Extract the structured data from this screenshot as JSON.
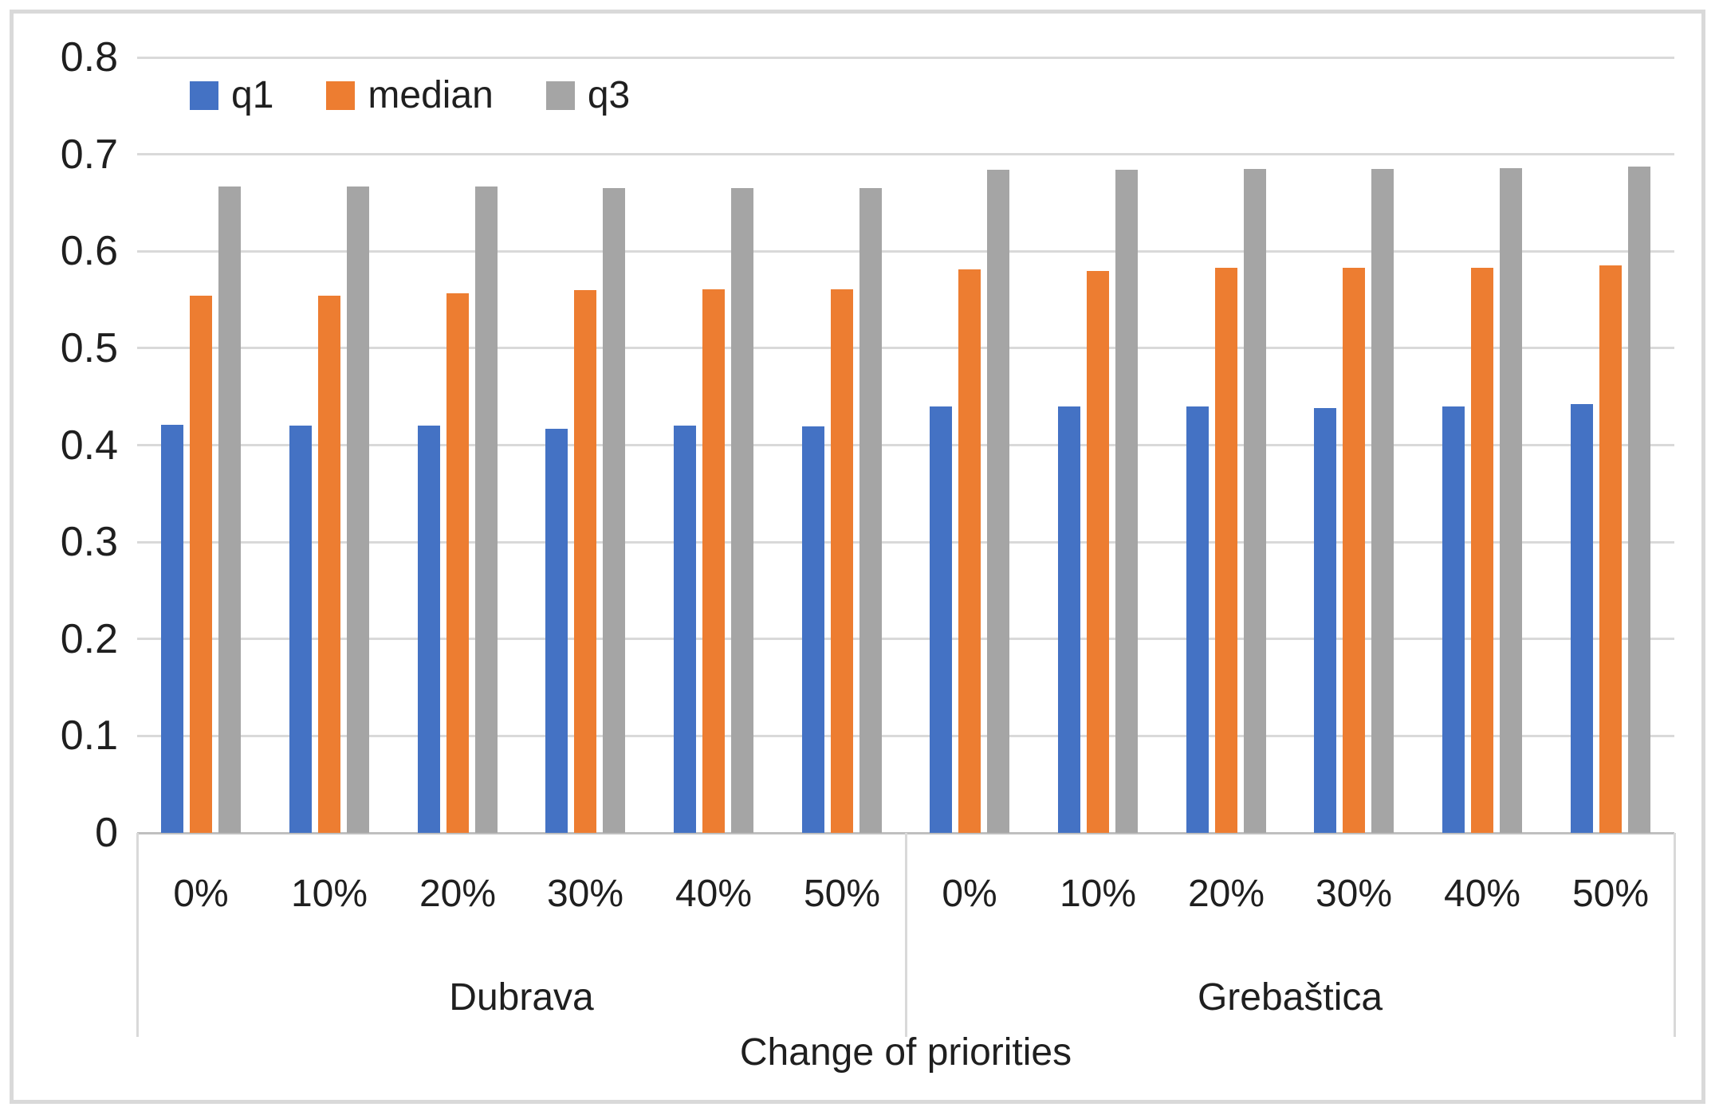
{
  "chart_data": {
    "type": "bar",
    "title": "",
    "xlabel": "Change of priorities",
    "ylabel": "",
    "ylim": [
      0,
      0.8
    ],
    "ytick_step": 0.1,
    "ytick_labels": [
      "0",
      "0.1",
      "0.2",
      "0.3",
      "0.4",
      "0.5",
      "0.6",
      "0.7",
      "0.8"
    ],
    "grid": "horizontal",
    "legend_position": "top-left-inside",
    "groups": [
      {
        "label": "Dubrava",
        "categories": [
          "0%",
          "10%",
          "20%",
          "30%",
          "40%",
          "50%"
        ]
      },
      {
        "label": "Grebaštica",
        "categories": [
          "0%",
          "10%",
          "20%",
          "30%",
          "40%",
          "50%"
        ]
      }
    ],
    "series": [
      {
        "name": "q1",
        "color": "#4472C4",
        "values": [
          0.421,
          0.42,
          0.42,
          0.417,
          0.42,
          0.419,
          0.44,
          0.44,
          0.44,
          0.438,
          0.44,
          0.442
        ]
      },
      {
        "name": "median",
        "color": "#ED7D31",
        "values": [
          0.554,
          0.554,
          0.557,
          0.56,
          0.561,
          0.561,
          0.581,
          0.58,
          0.583,
          0.583,
          0.583,
          0.585
        ]
      },
      {
        "name": "q3",
        "color": "#A5A5A5",
        "values": [
          0.667,
          0.667,
          0.667,
          0.665,
          0.665,
          0.665,
          0.684,
          0.684,
          0.685,
          0.685,
          0.686,
          0.687
        ]
      }
    ]
  },
  "style_colors": {
    "gridline": "#d9d9d9",
    "axis_line": "#bfbfbf",
    "frame_border": "#d9d9d9",
    "text": "#1f1f1f",
    "background": "#ffffff"
  }
}
